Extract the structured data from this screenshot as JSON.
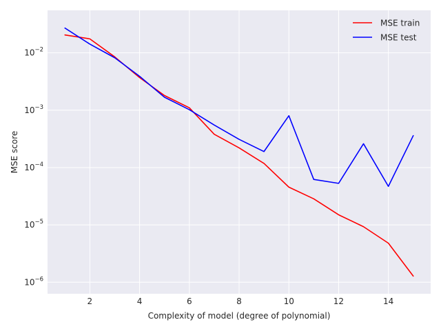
{
  "chart_data": {
    "type": "line",
    "title": "",
    "xlabel": "Complexity of model (degree of polynomial)",
    "ylabel": "MSE score",
    "x": [
      1,
      2,
      3,
      4,
      5,
      6,
      7,
      8,
      9,
      10,
      11,
      12,
      13,
      14,
      15
    ],
    "xlim": [
      0.3,
      15.7
    ],
    "ylim": [
      6.3e-07,
      0.055
    ],
    "yscale": "log",
    "xticks": [
      2,
      4,
      6,
      8,
      10,
      12,
      14
    ],
    "xtick_labels": [
      "2",
      "4",
      "6",
      "8",
      "10",
      "12",
      "14"
    ],
    "yticks": [
      1e-06,
      1e-05,
      0.0001,
      0.001,
      0.01
    ],
    "ytick_labels": [
      {
        "base": "10",
        "exp": "−6"
      },
      {
        "base": "10",
        "exp": "−5"
      },
      {
        "base": "10",
        "exp": "−4"
      },
      {
        "base": "10",
        "exp": "−3"
      },
      {
        "base": "10",
        "exp": "−2"
      }
    ],
    "grid": true,
    "legend_position": "top-right",
    "series": [
      {
        "name": "MSE train",
        "color": "#ff0000",
        "values": [
          0.0205,
          0.0175,
          0.0085,
          0.0037,
          0.0018,
          0.0011,
          0.00038,
          0.00022,
          0.000118,
          4.55e-05,
          2.85e-05,
          1.5e-05,
          9.3e-06,
          4.8e-06,
          1.28e-06
        ]
      },
      {
        "name": "MSE test",
        "color": "#0000ff",
        "values": [
          0.027,
          0.0142,
          0.0082,
          0.0039,
          0.00168,
          0.00102,
          0.00055,
          0.00031,
          0.00019,
          0.0008,
          6.2e-05,
          5.3e-05,
          0.00026,
          4.7e-05,
          0.00036
        ]
      }
    ]
  }
}
